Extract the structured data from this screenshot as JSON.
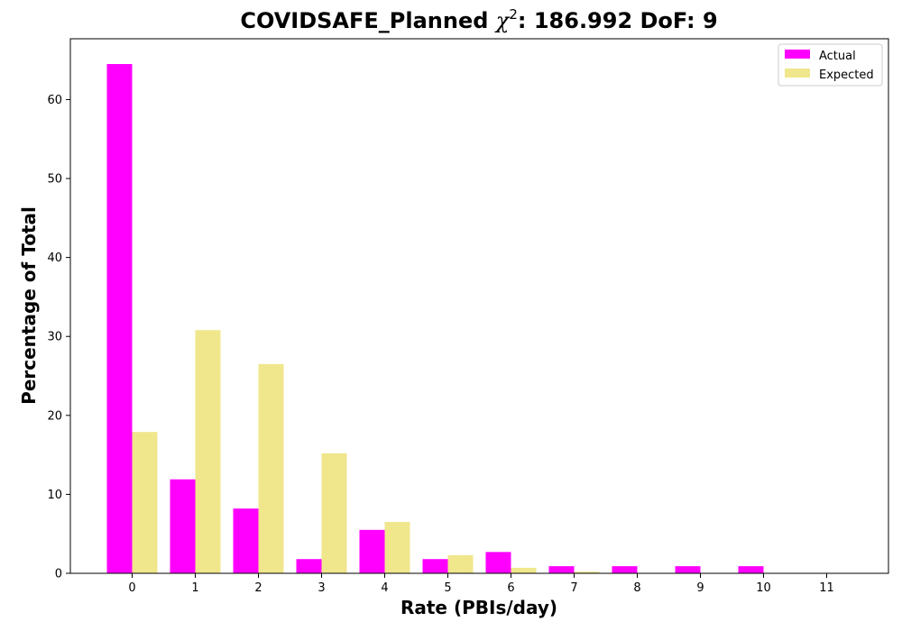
{
  "chart_data": {
    "type": "bar",
    "title_prefix": "COVIDSAFE_Planned ",
    "title_chi": "χ",
    "title_sup": "2",
    "title_suffix": ": 186.992 DoF: 9",
    "xlabel": "Rate (PBIs/day)",
    "ylabel": "Percentage of Total",
    "categories": [
      "0",
      "1",
      "2",
      "3",
      "4",
      "5",
      "6",
      "7",
      "8",
      "9",
      "10",
      "11"
    ],
    "series": [
      {
        "name": "Actual",
        "color": "#ff00ff",
        "values": [
          64.5,
          11.9,
          8.2,
          1.8,
          5.5,
          1.8,
          2.7,
          0.9,
          0.9,
          0.9,
          0.9,
          0
        ]
      },
      {
        "name": "Expected",
        "color": "#f0e68c",
        "values": [
          17.9,
          30.8,
          26.5,
          15.2,
          6.5,
          2.3,
          0.7,
          0.2,
          0.04,
          0.01,
          0,
          0
        ]
      }
    ],
    "ylim": [
      0,
      67.7
    ],
    "yticks": [
      0,
      10,
      20,
      30,
      40,
      50,
      60
    ],
    "legend_position": "top-right",
    "grid": false
  }
}
